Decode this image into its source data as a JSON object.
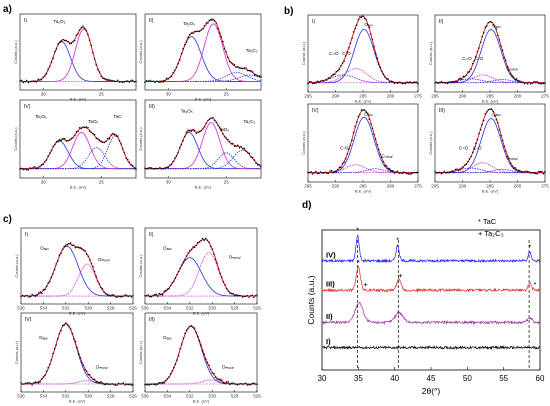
{
  "panel_labels": {
    "a": "a)",
    "b": "b)",
    "c": "c)",
    "d": "d)"
  },
  "chart_data": [
    {
      "id": "a",
      "type": "line",
      "rows": 2,
      "cols": 2,
      "xlabel": "B.E. (eV)",
      "ylabel": "Counts (a.u.)",
      "xticks": [
        "30",
        "25"
      ],
      "xlim": [
        32,
        22
      ],
      "subplots": [
        {
          "label": "I)",
          "components": [
            {
              "center": 28.4,
              "width": 0.75,
              "height": 0.62
            },
            {
              "center": 26.5,
              "width": 0.72,
              "height": 0.82
            }
          ],
          "baseline": 0.04,
          "annotations": [
            {
              "text": "Ta₂O₅",
              "x": 28.6,
              "y": 0.95
            }
          ]
        },
        {
          "label": "II)",
          "components": [
            {
              "center": 28.0,
              "width": 0.85,
              "height": 0.7
            },
            {
              "center": 26.1,
              "width": 0.8,
              "height": 0.9
            },
            {
              "center": 24.1,
              "width": 0.9,
              "height": 0.14
            },
            {
              "center": 23.0,
              "width": 0.9,
              "height": 0.1
            }
          ],
          "baseline": 0.04,
          "annotations": [
            {
              "text": "Ta₂O₅",
              "x": 28.2,
              "y": 0.92
            },
            {
              "text": "Ta₂C₃",
              "x": 22.8,
              "y": 0.5
            }
          ]
        },
        {
          "label": "IV)",
          "components": [
            {
              "center": 28.6,
              "width": 0.75,
              "height": 0.42
            },
            {
              "center": 26.7,
              "width": 0.75,
              "height": 0.55
            },
            {
              "center": 25.4,
              "width": 0.7,
              "height": 0.32
            },
            {
              "center": 23.8,
              "width": 0.65,
              "height": 0.5
            }
          ],
          "baseline": 0.05,
          "annotations": [
            {
              "text": "Ta₂O₅",
              "x": 30.2,
              "y": 0.82
            },
            {
              "text": "TaOₓ",
              "x": 25.7,
              "y": 0.74
            },
            {
              "text": "TaC",
              "x": 23.6,
              "y": 0.82
            }
          ]
        },
        {
          "label": "III)",
          "components": [
            {
              "center": 28.2,
              "width": 0.75,
              "height": 0.55
            },
            {
              "center": 26.3,
              "width": 0.75,
              "height": 0.7
            },
            {
              "center": 25.0,
              "width": 0.7,
              "height": 0.24
            },
            {
              "center": 23.6,
              "width": 0.8,
              "height": 0.28
            }
          ],
          "baseline": 0.05,
          "annotations": [
            {
              "text": "Ta₂O₅",
              "x": 28.4,
              "y": 0.9
            },
            {
              "text": "TaOₓ",
              "x": 25.2,
              "y": 0.62
            },
            {
              "text": "Ta₂C₃",
              "x": 23.0,
              "y": 0.74
            }
          ]
        }
      ]
    },
    {
      "id": "b",
      "type": "line",
      "rows": 2,
      "cols": 2,
      "xlabel": "B.E. (eV)",
      "ylabel": "Counts (a.u.)",
      "xticks": [
        "295",
        "290",
        "285",
        "280",
        "275"
      ],
      "xlim": [
        295,
        275
      ],
      "subplots": [
        {
          "label": "I)",
          "components": [
            {
              "center": 284.8,
              "width": 0.9,
              "height": 0.82
            },
            {
              "center": 286.3,
              "width": 1.0,
              "height": 0.22
            },
            {
              "center": 288.6,
              "width": 1.1,
              "height": 0.12
            }
          ],
          "baseline": 0.05,
          "annotations": [
            {
              "text": "Cₐₑₒ",
              "x": 284.0,
              "y": 0.92
            },
            {
              "text": "C-O",
              "x": 288.0,
              "y": 0.48
            },
            {
              "text": "C=O",
              "x": 290.3,
              "y": 0.48
            }
          ]
        },
        {
          "label": "II)",
          "components": [
            {
              "center": 284.8,
              "width": 0.9,
              "height": 0.82
            },
            {
              "center": 286.3,
              "width": 0.9,
              "height": 0.12
            },
            {
              "center": 288.5,
              "width": 1.0,
              "height": 0.06
            },
            {
              "center": 282.8,
              "width": 0.8,
              "height": 0.05
            }
          ],
          "baseline": 0.05,
          "annotations": [
            {
              "text": "Cₐₑₒ",
              "x": 283.8,
              "y": 0.9
            },
            {
              "text": "C-O",
              "x": 287.0,
              "y": 0.4
            },
            {
              "text": "C=O",
              "x": 289.2,
              "y": 0.4
            },
            {
              "text": "Cₜₐₗₒₐₗ",
              "x": 281.0,
              "y": 0.25
            }
          ]
        },
        {
          "label": "IV)",
          "components": [
            {
              "center": 284.8,
              "width": 0.9,
              "height": 0.84
            },
            {
              "center": 286.3,
              "width": 0.9,
              "height": 0.12
            },
            {
              "center": 282.8,
              "width": 0.8,
              "height": 0.06
            }
          ],
          "baseline": 0.05,
          "annotations": [
            {
              "text": "Cₐₑₒ",
              "x": 284.0,
              "y": 0.92
            },
            {
              "text": "C-O",
              "x": 288.4,
              "y": 0.4
            },
            {
              "text": "Cₜₐₗₒₐₗ",
              "x": 280.6,
              "y": 0.28
            }
          ]
        },
        {
          "label": "III)",
          "components": [
            {
              "center": 284.8,
              "width": 0.9,
              "height": 0.82
            },
            {
              "center": 286.3,
              "width": 0.9,
              "height": 0.15
            },
            {
              "center": 288.5,
              "width": 1.0,
              "height": 0.07
            },
            {
              "center": 282.8,
              "width": 0.8,
              "height": 0.05
            }
          ],
          "baseline": 0.05,
          "annotations": [
            {
              "text": "Cₐₑₒ",
              "x": 283.8,
              "y": 0.92
            },
            {
              "text": "C-O",
              "x": 287.3,
              "y": 0.4
            },
            {
              "text": "C=O",
              "x": 289.8,
              "y": 0.4
            },
            {
              "text": "Cₜₐₗₒₐₗ",
              "x": 281.0,
              "y": 0.25
            }
          ]
        }
      ]
    },
    {
      "id": "c",
      "type": "line",
      "rows": 2,
      "cols": 2,
      "xlabel": "B.E. (eV)",
      "ylabel": "Counts (a.u.)",
      "xticks": [
        "536",
        "534",
        "532",
        "530",
        "528",
        "526"
      ],
      "xlim": [
        536,
        526
      ],
      "subplots": [
        {
          "label": "I)",
          "components": [
            {
              "center": 531.9,
              "width": 1.0,
              "height": 0.78
            },
            {
              "center": 530.1,
              "width": 0.75,
              "height": 0.5
            }
          ],
          "baseline": 0.03,
          "annotations": [
            {
              "text": "Oₐₑₒ",
              "x": 533.9,
              "y": 0.76
            },
            {
              "text": "Oₘₑₜₐₗ",
              "x": 528.6,
              "y": 0.58
            }
          ]
        },
        {
          "label": "II)",
          "components": [
            {
              "center": 532.0,
              "width": 1.05,
              "height": 0.6
            },
            {
              "center": 530.3,
              "width": 0.85,
              "height": 0.68
            }
          ],
          "baseline": 0.03,
          "annotations": [
            {
              "text": "Oₐₑₒ",
              "x": 534.0,
              "y": 0.76
            },
            {
              "text": "Oₘₑₜₐₗ",
              "x": 528.0,
              "y": 0.62
            }
          ]
        },
        {
          "label": "IV)",
          "components": [
            {
              "center": 532.0,
              "width": 0.95,
              "height": 0.9
            },
            {
              "center": 530.1,
              "width": 0.75,
              "height": 0.05
            }
          ],
          "baseline": 0.03,
          "annotations": [
            {
              "text": "Oₐₑₒ",
              "x": 534.0,
              "y": 0.7
            },
            {
              "text": "Oₘₑₜₐₗ",
              "x": 528.8,
              "y": 0.26
            }
          ]
        },
        {
          "label": "III)",
          "components": [
            {
              "center": 531.9,
              "width": 0.95,
              "height": 0.86
            },
            {
              "center": 530.1,
              "width": 0.75,
              "height": 0.06
            }
          ],
          "baseline": 0.03,
          "annotations": [
            {
              "text": "Oₐₑₒ",
              "x": 534.0,
              "y": 0.7
            },
            {
              "text": "Oₘₑₜₐₗ",
              "x": 528.6,
              "y": 0.26
            }
          ]
        }
      ]
    },
    {
      "id": "d",
      "type": "line",
      "xlabel": "2θ(°)",
      "ylabel": "Counts (a.u.)",
      "xlim": [
        30,
        60
      ],
      "xticks": [
        30,
        35,
        40,
        45,
        50,
        55,
        60
      ],
      "legend": [
        "* TaC",
        "+ Ta₂C₃"
      ],
      "reference_lines": [
        34.9,
        40.5,
        58.5
      ],
      "series": [
        {
          "name": "IV)",
          "color": "#1a1aff",
          "offset": 0.78,
          "peaks": [
            {
              "x": 34.9,
              "h": 0.18,
              "w": 0.22
            },
            {
              "x": 40.4,
              "h": 0.11,
              "w": 0.22
            },
            {
              "x": 58.6,
              "h": 0.06,
              "w": 0.22
            }
          ],
          "markers": [
            {
              "x": 34.9,
              "sym": "*"
            },
            {
              "x": 40.4,
              "sym": "*"
            },
            {
              "x": 58.6,
              "sym": "*"
            }
          ]
        },
        {
          "name": "III)",
          "color": "#e8261f",
          "offset": 0.57,
          "peaks": [
            {
              "x": 35.0,
              "h": 0.16,
              "w": 0.3
            },
            {
              "x": 40.6,
              "h": 0.08,
              "w": 0.3
            },
            {
              "x": 58.6,
              "h": 0.05,
              "w": 0.25
            }
          ],
          "markers": [
            {
              "x": 35.0,
              "sym": "*"
            },
            {
              "x": 36.0,
              "sym": "+"
            },
            {
              "x": 40.8,
              "sym": "+"
            },
            {
              "x": 59.3,
              "sym": "*"
            }
          ]
        },
        {
          "name": "II)",
          "color": "#9b2ea3",
          "offset": 0.34,
          "peaks": [
            {
              "x": 35.1,
              "h": 0.14,
              "w": 0.55
            },
            {
              "x": 40.6,
              "h": 0.07,
              "w": 0.55
            },
            {
              "x": 58.6,
              "h": 0.03,
              "w": 0.35
            }
          ],
          "markers": []
        },
        {
          "name": "I)",
          "color": "#000000",
          "offset": 0.16,
          "peaks": [],
          "markers": []
        }
      ]
    }
  ]
}
